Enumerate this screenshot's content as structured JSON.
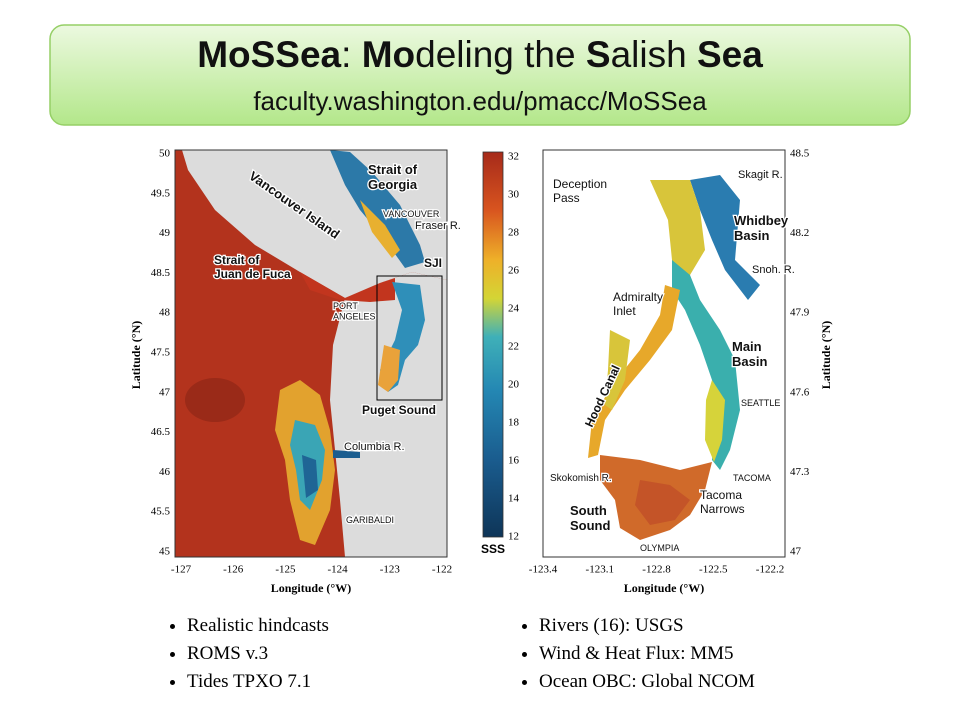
{
  "header": {
    "title": [
      {
        "text": "MoSSea",
        "bold": true
      },
      {
        "text": ": ",
        "bold": false
      },
      {
        "text": "Mo",
        "bold": true
      },
      {
        "text": "deling the ",
        "bold": false
      },
      {
        "text": "S",
        "bold": true
      },
      {
        "text": "alish ",
        "bold": false
      },
      {
        "text": "Sea",
        "bold": true
      }
    ],
    "url": "faculty.washington.edu/pmacc/MoSSea"
  },
  "left_map": {
    "yticks": [
      50,
      49.5,
      49,
      48.5,
      48,
      47.5,
      47,
      46.5,
      46,
      45.5,
      45
    ],
    "xticks": [
      -127,
      -126,
      -125,
      -124,
      -123,
      -122
    ],
    "ylabel": "Latitude (°N)",
    "xlabel": "Longitude (°W)",
    "labels": [
      {
        "lines": [
          "Strait of",
          "Georgia"
        ]
      },
      {
        "lines": [
          "Vancouver Island"
        ]
      },
      {
        "lines": [
          "VANCOUVER"
        ]
      },
      {
        "lines": [
          "Fraser R."
        ]
      },
      {
        "lines": [
          "Strait of",
          "Juan de Fuca"
        ]
      },
      {
        "lines": [
          "SJI"
        ]
      },
      {
        "lines": [
          "PORT",
          "ANGELES"
        ]
      },
      {
        "lines": [
          "Puget Sound"
        ]
      },
      {
        "lines": [
          "Columbia R."
        ]
      },
      {
        "lines": [
          "GARIBALDI"
        ]
      }
    ]
  },
  "colorbar": {
    "ticks": [
      32,
      30,
      28,
      26,
      24,
      22,
      20,
      18,
      16,
      14,
      12
    ],
    "label": "SSS"
  },
  "right_map": {
    "yticks": [
      48.5,
      48.2,
      47.9,
      47.6,
      47.3,
      47
    ],
    "xticks": [
      -123.4,
      -123.1,
      -122.8,
      -122.5,
      -122.2
    ],
    "ylabel": "Latitude (°N)",
    "xlabel": "Longitude (°W)",
    "labels": [
      {
        "lines": [
          "Deception",
          "Pass"
        ]
      },
      {
        "lines": [
          "Skagit R."
        ]
      },
      {
        "lines": [
          "Whidbey",
          "Basin"
        ]
      },
      {
        "lines": [
          "Snoh. R."
        ]
      },
      {
        "lines": [
          "Admiralty",
          "Inlet"
        ]
      },
      {
        "lines": [
          "Main",
          "Basin"
        ]
      },
      {
        "lines": [
          "Hood Canal"
        ]
      },
      {
        "lines": [
          "SEATTLE"
        ]
      },
      {
        "lines": [
          "Skokomish R."
        ]
      },
      {
        "lines": [
          "TACOMA"
        ]
      },
      {
        "lines": [
          "Tacoma",
          "Narrows"
        ]
      },
      {
        "lines": [
          "South",
          "Sound"
        ]
      },
      {
        "lines": [
          "OLYMPIA"
        ]
      }
    ]
  },
  "bullets_left": [
    "Realistic hindcasts",
    "ROMS v.3",
    "Tides TPXO 7.1"
  ],
  "bullets_right": [
    "Rivers (16): USGS",
    "Wind & Heat Flux: MM5",
    "Ocean OBC: Global NCOM"
  ]
}
